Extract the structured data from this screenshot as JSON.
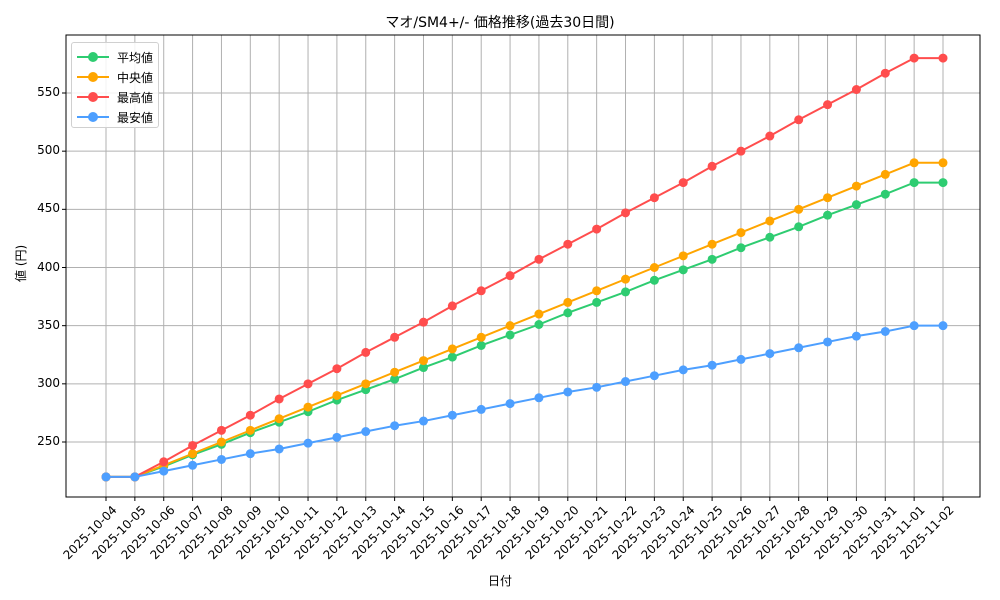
{
  "chart_data": {
    "type": "line",
    "title": "マオ/SM4+/- 価格推移(過去30日間)",
    "xlabel": "日付",
    "ylabel": "値 (円)",
    "ylim": [
      205,
      595
    ],
    "yticks": [
      250,
      300,
      350,
      400,
      450,
      500,
      550
    ],
    "grid": true,
    "legend_position": "upper left",
    "x": [
      "2025-10-04",
      "2025-10-05",
      "2025-10-06",
      "2025-10-07",
      "2025-10-08",
      "2025-10-09",
      "2025-10-10",
      "2025-10-11",
      "2025-10-12",
      "2025-10-13",
      "2025-10-14",
      "2025-10-15",
      "2025-10-16",
      "2025-10-17",
      "2025-10-18",
      "2025-10-19",
      "2025-10-20",
      "2025-10-21",
      "2025-10-22",
      "2025-10-23",
      "2025-10-24",
      "2025-10-25",
      "2025-10-26",
      "2025-10-27",
      "2025-10-28",
      "2025-10-29",
      "2025-10-30",
      "2025-10-31",
      "2025-11-01",
      "2025-11-02"
    ],
    "series": [
      {
        "name": "平均値",
        "color": "#2ecc71",
        "values": [
          220,
          220,
          229,
          239,
          248,
          258,
          267,
          276,
          286,
          295,
          304,
          314,
          323,
          333,
          342,
          351,
          361,
          370,
          379,
          389,
          398,
          407,
          417,
          426,
          435,
          445,
          454,
          463,
          473,
          473
        ]
      },
      {
        "name": "中央値",
        "color": "#ffa500",
        "values": [
          220,
          220,
          230,
          240,
          250,
          260,
          270,
          280,
          290,
          300,
          310,
          320,
          330,
          340,
          350,
          360,
          370,
          380,
          390,
          400,
          410,
          420,
          430,
          440,
          450,
          460,
          470,
          480,
          490,
          490
        ]
      },
      {
        "name": "最高値",
        "color": "#ff4d4d",
        "values": [
          220,
          220,
          233,
          247,
          260,
          273,
          287,
          300,
          313,
          327,
          340,
          353,
          367,
          380,
          393,
          407,
          420,
          433,
          447,
          460,
          473,
          487,
          500,
          513,
          527,
          540,
          553,
          567,
          580,
          580
        ]
      },
      {
        "name": "最安値",
        "color": "#4d9fff",
        "values": [
          220,
          220,
          225,
          230,
          235,
          240,
          244,
          249,
          254,
          259,
          264,
          268,
          273,
          278,
          283,
          288,
          293,
          297,
          302,
          307,
          312,
          316,
          321,
          326,
          331,
          336,
          341,
          345,
          350,
          350
        ]
      }
    ]
  }
}
